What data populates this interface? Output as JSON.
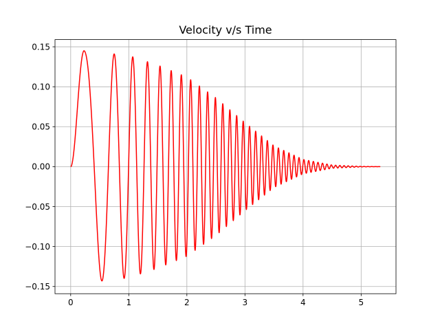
{
  "chart_data": {
    "type": "line",
    "title": "Velocity v/s Time",
    "xlabel": "",
    "ylabel": "",
    "xlim": [
      -0.27,
      5.6
    ],
    "ylim": [
      -0.159,
      0.159
    ],
    "x_ticks": [
      0,
      1,
      2,
      3,
      4,
      5
    ],
    "y_ticks": [
      -0.15,
      -0.1,
      -0.05,
      0.0,
      0.05,
      0.1,
      0.15
    ],
    "x_tick_labels": [
      "0",
      "1",
      "2",
      "3",
      "4",
      "5"
    ],
    "y_tick_labels": [
      "−0.15",
      "−0.10",
      "−0.05",
      "0.00",
      "0.05",
      "0.10",
      "0.15"
    ],
    "grid": true,
    "legend": "none",
    "series": [
      {
        "color": "#ff0000",
        "x_start": 0.0,
        "x_end": 5.33,
        "description_points": {
          "x": [
            0.0,
            0.23,
            0.45,
            0.55,
            0.65,
            0.75,
            0.9,
            1.0,
            1.5,
            2.0,
            2.5,
            3.0,
            3.5,
            4.0,
            4.5,
            5.0,
            5.33
          ],
          "envelope": [
            0.0,
            0.145,
            0.143,
            0.143,
            0.142,
            0.141,
            0.14,
            0.139,
            0.127,
            0.112,
            0.086,
            0.055,
            0.026,
            0.009,
            0.002,
            0.0003,
            0.0
          ]
        }
      }
    ]
  }
}
